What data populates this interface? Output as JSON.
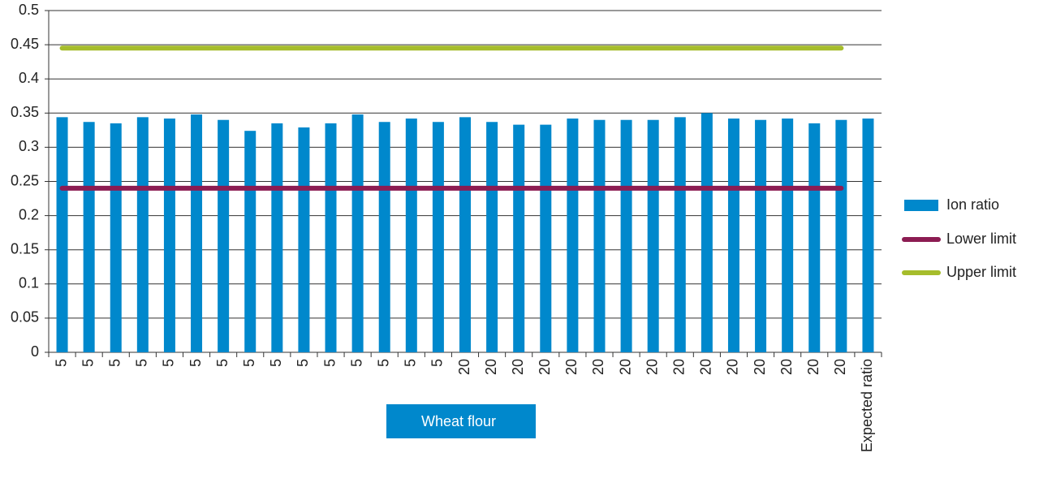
{
  "chart_data": {
    "type": "bar",
    "categories": [
      "5",
      "5",
      "5",
      "5",
      "5",
      "5",
      "5",
      "5",
      "5",
      "5",
      "5",
      "5",
      "5",
      "5",
      "5",
      "20",
      "20",
      "20",
      "20",
      "20",
      "20",
      "20",
      "20",
      "20",
      "20",
      "20",
      "20",
      "20",
      "20",
      "20",
      "Expected ratio"
    ],
    "series": [
      {
        "name": "Ion ratio",
        "type": "bar",
        "color": "#0088cc",
        "values": [
          0.344,
          0.337,
          0.335,
          0.344,
          0.342,
          0.348,
          0.34,
          0.324,
          0.335,
          0.329,
          0.335,
          0.348,
          0.337,
          0.342,
          0.337,
          0.344,
          0.337,
          0.333,
          0.333,
          0.342,
          0.34,
          0.34,
          0.34,
          0.344,
          0.35,
          0.342,
          0.34,
          0.342,
          0.335,
          0.34,
          0.342
        ]
      },
      {
        "name": "Lower limit",
        "type": "line",
        "color": "#8c1c52",
        "values": [
          0.24,
          0.24,
          0.24,
          0.24,
          0.24,
          0.24,
          0.24,
          0.24,
          0.24,
          0.24,
          0.24,
          0.24,
          0.24,
          0.24,
          0.24,
          0.24,
          0.24,
          0.24,
          0.24,
          0.24,
          0.24,
          0.24,
          0.24,
          0.24,
          0.24,
          0.24,
          0.24,
          0.24,
          0.24,
          0.24,
          null
        ]
      },
      {
        "name": "Upper limit",
        "type": "line",
        "color": "#a6bd2c",
        "values": [
          0.445,
          0.445,
          0.445,
          0.445,
          0.445,
          0.445,
          0.445,
          0.445,
          0.445,
          0.445,
          0.445,
          0.445,
          0.445,
          0.445,
          0.445,
          0.445,
          0.445,
          0.445,
          0.445,
          0.445,
          0.445,
          0.445,
          0.445,
          0.445,
          0.445,
          0.445,
          0.445,
          0.445,
          0.445,
          0.445,
          null
        ]
      }
    ],
    "annotation": "Wheat flour",
    "ylim": [
      0,
      0.5
    ],
    "yticks": [
      0,
      0.05,
      0.1,
      0.15,
      0.2,
      0.25,
      0.3,
      0.35,
      0.4,
      0.45,
      0.5
    ],
    "grid": true,
    "legend": "right"
  }
}
